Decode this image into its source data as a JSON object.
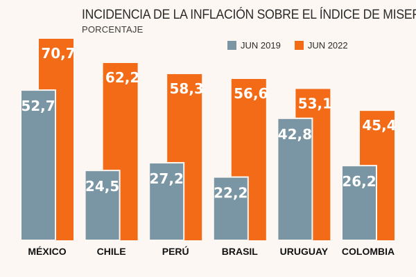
{
  "chart_data": {
    "type": "bar",
    "title": "INCIDENCIA DE LA INFLACIÓN SOBRE EL ÍNDICE DE MISERIA",
    "subtitle": "PORCENTAJE",
    "categories": [
      "MÉXICO",
      "CHILE",
      "PERÚ",
      "BRASIL",
      "URUGUAY",
      "COLOMBIA"
    ],
    "series": [
      {
        "name": "JUN 2019",
        "color": "#7a95a3",
        "values": [
          52.7,
          24.5,
          27.2,
          22.2,
          42.8,
          26.2
        ],
        "labels": [
          "52,7",
          "24,5",
          "27,2",
          "22,2",
          "42,8",
          "26,2"
        ]
      },
      {
        "name": "JUN 2022",
        "color": "#f36b16",
        "values": [
          70.7,
          62.2,
          58.3,
          56.6,
          53.1,
          45.4
        ],
        "labels": [
          "70,7",
          "62,2",
          "58,3",
          "56,6",
          "53,1",
          "45,4"
        ]
      }
    ],
    "ylim": [
      0,
      70.7
    ],
    "grid": false,
    "legend": "top-right"
  }
}
